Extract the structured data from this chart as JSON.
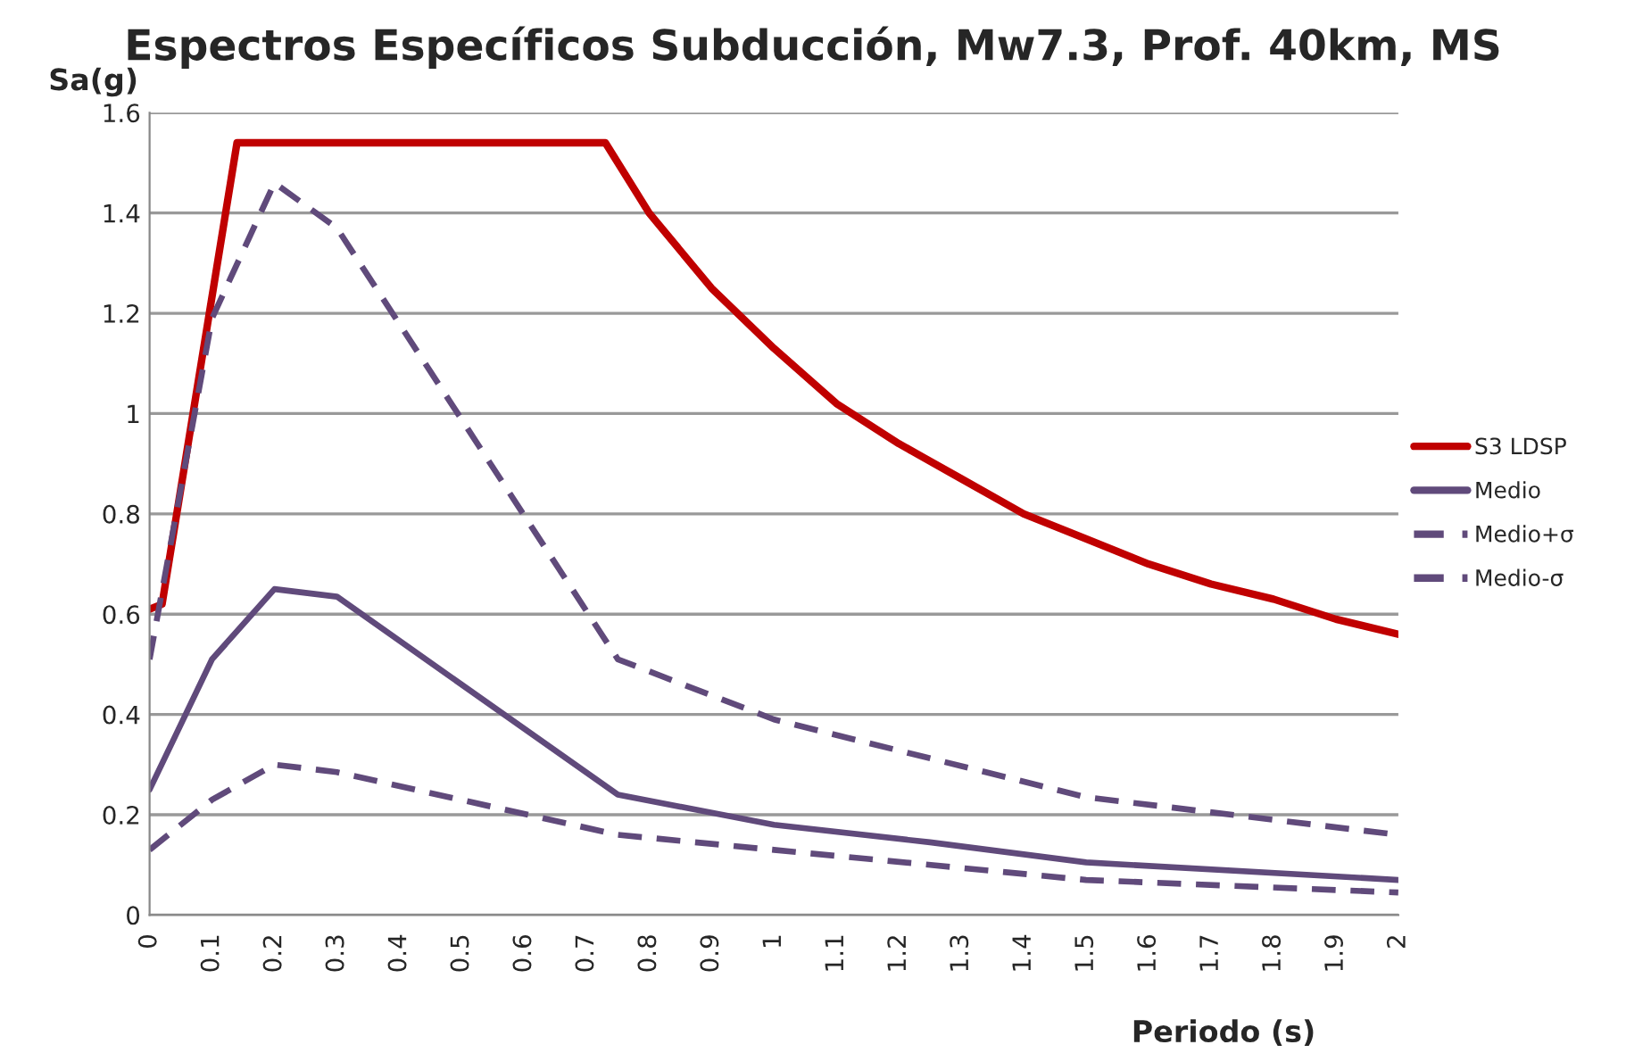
{
  "chart_data": {
    "type": "line",
    "title": "Espectros Específicos Subducción, Mw7.3, Prof. 40km, MS",
    "xlabel": "Periodo (s)",
    "ylabel": "Sa(g)",
    "xlim": [
      0,
      2
    ],
    "xticks": [
      0,
      0.1,
      0.2,
      0.3,
      0.4,
      0.5,
      0.6,
      0.7,
      0.8,
      0.9,
      1,
      1.1,
      1.2,
      1.3,
      1.4,
      1.5,
      1.6,
      1.7,
      1.8,
      1.9,
      2
    ],
    "ylim": [
      0,
      1.6
    ],
    "yticks": [
      0,
      0.2,
      0.4,
      0.6,
      0.8,
      1,
      1.2,
      1.4,
      1.6
    ],
    "grid": "y",
    "legend": "right",
    "series": [
      {
        "name": "S3 LDSP",
        "color": "#c00000",
        "line_style": "solid",
        "x": [
          0,
          0.02,
          0.14,
          0.73,
          0.8,
          0.9,
          1,
          1.1,
          1.2,
          1.3,
          1.4,
          1.5,
          1.6,
          1.7,
          1.8,
          1.9,
          2
        ],
        "values": [
          0.61,
          0.62,
          1.54,
          1.54,
          1.4,
          1.25,
          1.13,
          1.02,
          0.94,
          0.87,
          0.8,
          0.75,
          0.7,
          0.66,
          0.63,
          0.59,
          0.56
        ]
      },
      {
        "name": "Medio",
        "color": "#604a7b",
        "line_style": "solid",
        "x": [
          0,
          0.1,
          0.2,
          0.3,
          0.75,
          1,
          1.25,
          1.5,
          2
        ],
        "values": [
          0.25,
          0.51,
          0.65,
          0.635,
          0.24,
          0.18,
          0.145,
          0.105,
          0.07
        ]
      },
      {
        "name": "Medio+σ",
        "color": "#604a7b",
        "line_style": "dashed",
        "x": [
          0,
          0.1,
          0.2,
          0.3,
          0.75,
          1,
          1.5,
          2
        ],
        "values": [
          0.51,
          1.19,
          1.46,
          1.37,
          0.51,
          0.39,
          0.235,
          0.16
        ]
      },
      {
        "name": "Medio-σ",
        "color": "#604a7b",
        "line_style": "dashed",
        "x": [
          0,
          0.1,
          0.2,
          0.3,
          0.75,
          1,
          1.5,
          2
        ],
        "values": [
          0.13,
          0.23,
          0.3,
          0.285,
          0.16,
          0.13,
          0.07,
          0.045
        ]
      }
    ]
  }
}
